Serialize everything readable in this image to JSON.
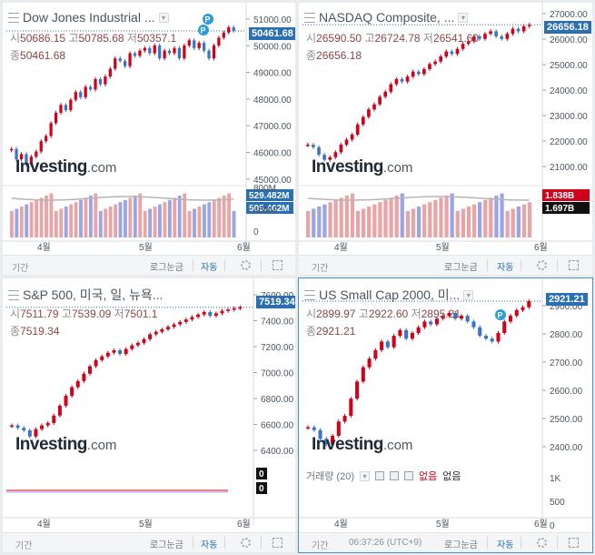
{
  "panels": [
    {
      "id": "dow",
      "title": "Dow Jones Industrial ...",
      "ohlc": {
        "open_label": "시",
        "open": "50686.15",
        "high_label": "고",
        "high": "50785.68",
        "low_label": "저",
        "low": "50357.1",
        "close_label": "종",
        "close": "50461.68"
      },
      "last_price": "50461.68",
      "y_ticks": [
        "51000.00",
        "50000.00",
        "49000.00",
        "48000.00",
        "47000.00",
        "46000.00",
        "45000.00"
      ],
      "vol_ticks": [
        "800M",
        "400M",
        "0"
      ],
      "vol_labels": [
        "529.482M",
        "505.462M"
      ],
      "x_ticks": [
        "4월",
        "5월",
        "6월"
      ],
      "markers": [
        "P",
        "P"
      ],
      "chart_data": {
        "type": "candlestick",
        "ylim": [
          44800,
          51200
        ],
        "close": [
          45900,
          45500,
          45700,
          45300,
          45600,
          45800,
          46200,
          46400,
          46900,
          47300,
          47600,
          47400,
          47800,
          48100,
          47900,
          48300,
          48200,
          48600,
          48400,
          48700,
          49000,
          49400,
          49300,
          49100,
          49600,
          49500,
          49700,
          49800,
          49600,
          49900,
          49400,
          49700,
          49600,
          49800,
          49400,
          49900,
          50100,
          49800,
          50000,
          49700,
          49400,
          49900,
          50200,
          50400,
          50600,
          50461.68
        ]
      }
    },
    {
      "id": "nasdaq",
      "title": "NASDAQ Composite, ...",
      "ohlc": {
        "open_label": "시",
        "open": "26590.50",
        "high_label": "고",
        "high": "26724.78",
        "low_label": "저",
        "low": "26541.60",
        "close_label": "종",
        "close": "26656.18"
      },
      "last_price": "26656.18",
      "y_ticks": [
        "27000.00",
        "26000.00",
        "25000.00",
        "24000.00",
        "23000.00",
        "22000.00",
        "21000.00"
      ],
      "vol_labels": [
        "1.838B",
        "1.697B"
      ],
      "x_ticks": [
        "4월",
        "5월",
        "6월"
      ],
      "chart_data": {
        "type": "candlestick",
        "ylim": [
          20600,
          27100
        ],
        "close": [
          21900,
          21800,
          21500,
          21300,
          21400,
          21600,
          21900,
          22100,
          22300,
          22700,
          23000,
          23300,
          23500,
          23800,
          24000,
          24300,
          24500,
          24400,
          24600,
          24800,
          24700,
          24900,
          25100,
          25200,
          25400,
          25600,
          25500,
          25700,
          25900,
          26000,
          26200,
          26100,
          26300,
          26400,
          26200,
          26100,
          26300,
          26500,
          26400,
          26600,
          26656.18
        ]
      }
    },
    {
      "id": "sp500",
      "title": "S&P 500, 미국, 일, 뉴욕...",
      "ohlc": {
        "open_label": "시",
        "open": "7511.79",
        "high_label": "고",
        "high": "7539.09",
        "low_label": "저",
        "low": "7501.1",
        "close_label": "종",
        "close": "7519.34"
      },
      "last_price": "7519.34",
      "y_ticks": [
        "7600.00",
        "7400.00",
        "7200.00",
        "7000.00",
        "6800.00",
        "6600.00",
        "6400.00"
      ],
      "vol_labels": [
        "0",
        "0"
      ],
      "x_ticks": [
        "4월",
        "5월",
        "6월"
      ],
      "chart_data": {
        "type": "candlestick",
        "ylim": [
          6350,
          7650
        ],
        "close": [
          6560,
          6540,
          6520,
          6470,
          6530,
          6560,
          6580,
          6640,
          6720,
          6800,
          6870,
          6920,
          6980,
          7040,
          7090,
          7120,
          7150,
          7170,
          7140,
          7180,
          7210,
          7230,
          7260,
          7300,
          7320,
          7340,
          7360,
          7380,
          7400,
          7420,
          7440,
          7460,
          7480,
          7450,
          7470,
          7490,
          7500,
          7510,
          7519.34
        ]
      }
    },
    {
      "id": "russell",
      "title": "US Small Cap 2000, 미...",
      "ohlc": {
        "open_label": "시",
        "open": "2899.97",
        "high_label": "고",
        "high": "2922.60",
        "low_label": "저",
        "low": "2895.21",
        "close_label": "종",
        "close": "2921.21"
      },
      "last_price": "2921.21",
      "y_ticks": [
        "2900.00",
        "2800.00",
        "2700.00",
        "2600.00",
        "2500.00",
        "2400.00"
      ],
      "vol_ticks": [
        "1K",
        "500",
        "0"
      ],
      "vol_row": {
        "label": "거래량 (20)",
        "val1": "없음",
        "val2": "없음"
      },
      "x_ticks": [
        "4월",
        "5월",
        "6월"
      ],
      "markers": [
        "P"
      ],
      "chart_data": {
        "type": "candlestick",
        "ylim": [
          2380,
          2950
        ],
        "close": [
          2480,
          2470,
          2440,
          2420,
          2450,
          2500,
          2520,
          2580,
          2640,
          2690,
          2720,
          2750,
          2780,
          2760,
          2800,
          2820,
          2790,
          2810,
          2830,
          2850,
          2840,
          2860,
          2870,
          2880,
          2860,
          2870,
          2850,
          2830,
          2800,
          2790,
          2780,
          2810,
          2850,
          2870,
          2890,
          2900,
          2921.21
        ]
      }
    }
  ],
  "bottom": {
    "time_label": "기간",
    "log_label": "로그눈금",
    "auto_label": "자동",
    "clock": "06:37:26 (UTC+9)"
  },
  "logo": {
    "brand": "Investing",
    "suffix": ".com"
  },
  "colors": {
    "up": "#d0021b",
    "down": "#3a74c9",
    "price_tag": "#2a6fb3",
    "vol_up": "#e9a5a5",
    "vol_down": "#9aa5e6"
  }
}
